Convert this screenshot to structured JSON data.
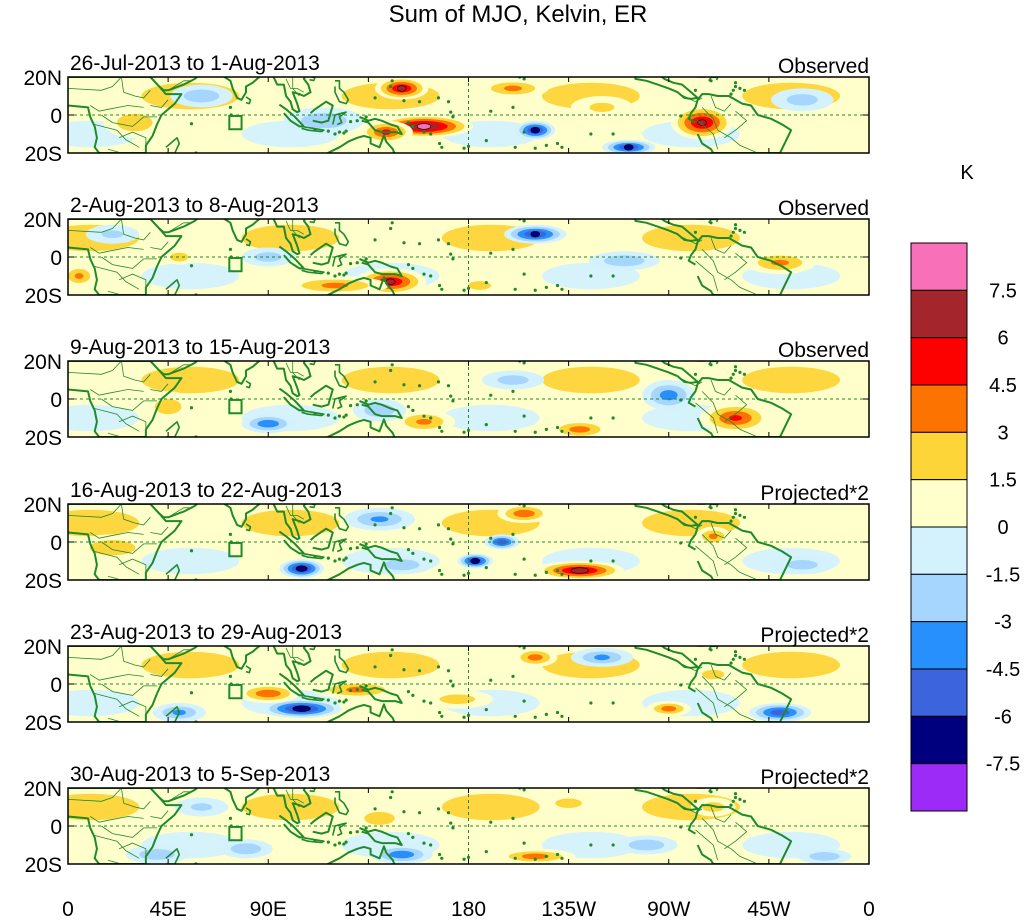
{
  "chart_data": {
    "type": "heatmap",
    "title": "Sum of MJO, Kelvin, ER",
    "colorbar": {
      "unit": "K",
      "levels": [
        "7.5",
        "6",
        "4.5",
        "3",
        "1.5",
        "0",
        "-1.5",
        "-3",
        "-4.5",
        "-6",
        "-7.5"
      ],
      "colors": [
        "#f871b8",
        "#a4262c",
        "#fd0000",
        "#fd7302",
        "#fed538",
        "#ffffcb",
        "#d4f2fe",
        "#a6d6fd",
        "#2890fc",
        "#3b64dd",
        "#00007f",
        "#9d2bf7"
      ]
    },
    "x_ticks": [
      "0",
      "45E",
      "90E",
      "135E",
      "180",
      "135W",
      "90W",
      "45W",
      "0"
    ],
    "y_ticks": [
      "20N",
      "0",
      "20S"
    ],
    "lat_range": [
      -20,
      20
    ],
    "lon_range": [
      0,
      360
    ],
    "map_color": "#1f8a2a",
    "panels": [
      {
        "period": "26-Jul-2013 to 1-Aug-2013",
        "type": "Observed",
        "blobs": [
          {
            "lon": 160,
            "lat": -6,
            "value": 8.2,
            "rx": 22,
            "ry": 6
          },
          {
            "lon": 143,
            "lat": -9,
            "value": 5.0,
            "rx": 12,
            "ry": 6
          },
          {
            "lon": 150,
            "lat": 14,
            "value": 6.5,
            "rx": 12,
            "ry": 6
          },
          {
            "lon": 285,
            "lat": -4,
            "value": 6.5,
            "rx": 14,
            "ry": 9
          },
          {
            "lon": 210,
            "lat": -8,
            "value": -7.0,
            "rx": 9,
            "ry": 5
          },
          {
            "lon": 252,
            "lat": -17,
            "value": -6.5,
            "rx": 12,
            "ry": 4
          },
          {
            "lon": 200,
            "lat": 14,
            "value": 3.5,
            "rx": 16,
            "ry": 5
          },
          {
            "lon": 30,
            "lat": -4,
            "value": 3.0,
            "rx": 14,
            "ry": 8
          },
          {
            "lon": 60,
            "lat": 10,
            "value": -3.0,
            "rx": 14,
            "ry": 6
          },
          {
            "lon": 115,
            "lat": -3,
            "value": -3.0,
            "rx": 18,
            "ry": 7
          },
          {
            "lon": 330,
            "lat": 8,
            "value": -2.5,
            "rx": 14,
            "ry": 6
          },
          {
            "lon": 240,
            "lat": 4,
            "value": 2.0,
            "rx": 14,
            "ry": 6
          }
        ]
      },
      {
        "period": "2-Aug-2013 to 8-Aug-2013",
        "type": "Observed",
        "blobs": [
          {
            "lon": 145,
            "lat": -13,
            "value": 6.2,
            "rx": 16,
            "ry": 7
          },
          {
            "lon": 120,
            "lat": -15,
            "value": 3.5,
            "rx": 24,
            "ry": 5
          },
          {
            "lon": 210,
            "lat": 12,
            "value": -6.5,
            "rx": 14,
            "ry": 5
          },
          {
            "lon": 320,
            "lat": -3,
            "value": 3.5,
            "rx": 16,
            "ry": 6
          },
          {
            "lon": 5,
            "lat": -10,
            "value": 3.5,
            "rx": 8,
            "ry": 6
          },
          {
            "lon": 50,
            "lat": 0,
            "value": 3.0,
            "rx": 7,
            "ry": 4
          },
          {
            "lon": 250,
            "lat": -2,
            "value": -3.0,
            "rx": 16,
            "ry": 5
          },
          {
            "lon": 185,
            "lat": -15,
            "value": 3.0,
            "rx": 9,
            "ry": 4
          },
          {
            "lon": 90,
            "lat": 0,
            "value": -2.5,
            "rx": 12,
            "ry": 5
          },
          {
            "lon": 20,
            "lat": 12,
            "value": -2.0,
            "rx": 12,
            "ry": 5
          }
        ]
      },
      {
        "period": "9-Aug-2013 to 15-Aug-2013",
        "type": "Observed",
        "blobs": [
          {
            "lon": 300,
            "lat": -10,
            "value": 5.0,
            "rx": 16,
            "ry": 8
          },
          {
            "lon": 160,
            "lat": -12,
            "value": 3.5,
            "rx": 14,
            "ry": 6
          },
          {
            "lon": 230,
            "lat": -16,
            "value": 4.0,
            "rx": 14,
            "ry": 5
          },
          {
            "lon": 90,
            "lat": -13,
            "value": -4.5,
            "rx": 12,
            "ry": 5
          },
          {
            "lon": 270,
            "lat": 2,
            "value": -4.0,
            "rx": 12,
            "ry": 8
          },
          {
            "lon": 140,
            "lat": -6,
            "value": -3.0,
            "rx": 12,
            "ry": 6
          },
          {
            "lon": 45,
            "lat": -4,
            "value": 2.5,
            "rx": 12,
            "ry": 8
          },
          {
            "lon": 200,
            "lat": 10,
            "value": -2.5,
            "rx": 14,
            "ry": 5
          }
        ]
      },
      {
        "period": "16-Aug-2013 to 22-Aug-2013",
        "type": "Projected*2",
        "blobs": [
          {
            "lon": 230,
            "lat": -15,
            "value": 7.0,
            "rx": 20,
            "ry": 5
          },
          {
            "lon": 105,
            "lat": -14,
            "value": -7.5,
            "rx": 10,
            "ry": 5
          },
          {
            "lon": 183,
            "lat": -10,
            "value": -7.0,
            "rx": 8,
            "ry": 4
          },
          {
            "lon": 205,
            "lat": 15,
            "value": 4.5,
            "rx": 12,
            "ry": 5
          },
          {
            "lon": 195,
            "lat": 0,
            "value": -6.0,
            "rx": 8,
            "ry": 4
          },
          {
            "lon": 290,
            "lat": 3,
            "value": 3.5,
            "rx": 8,
            "ry": 5
          },
          {
            "lon": 20,
            "lat": -3,
            "value": 3.0,
            "rx": 18,
            "ry": 7
          },
          {
            "lon": 140,
            "lat": 12,
            "value": -3.5,
            "rx": 16,
            "ry": 6
          },
          {
            "lon": 150,
            "lat": -12,
            "value": -3.0,
            "rx": 14,
            "ry": 5
          },
          {
            "lon": 330,
            "lat": -12,
            "value": -2.5,
            "rx": 14,
            "ry": 5
          }
        ]
      },
      {
        "period": "23-Aug-2013 to 29-Aug-2013",
        "type": "Projected*2",
        "blobs": [
          {
            "lon": 105,
            "lat": -13,
            "value": -7.2,
            "rx": 18,
            "ry": 5
          },
          {
            "lon": 90,
            "lat": -5,
            "value": 4.5,
            "rx": 14,
            "ry": 5
          },
          {
            "lon": 130,
            "lat": -3,
            "value": 3.5,
            "rx": 20,
            "ry": 5
          },
          {
            "lon": 320,
            "lat": -15,
            "value": -6.0,
            "rx": 14,
            "ry": 5
          },
          {
            "lon": 210,
            "lat": 14,
            "value": 4.0,
            "rx": 10,
            "ry": 5
          },
          {
            "lon": 270,
            "lat": -13,
            "value": 4.0,
            "rx": 10,
            "ry": 4
          },
          {
            "lon": 50,
            "lat": -15,
            "value": -3.5,
            "rx": 12,
            "ry": 5
          },
          {
            "lon": 240,
            "lat": 14,
            "value": -3.5,
            "rx": 14,
            "ry": 5
          },
          {
            "lon": 175,
            "lat": -8,
            "value": 2.5,
            "rx": 16,
            "ry": 5
          },
          {
            "lon": 290,
            "lat": 5,
            "value": 2.5,
            "rx": 10,
            "ry": 5
          }
        ]
      },
      {
        "period": "30-Aug-2013 to 5-Sep-2013",
        "type": "Projected*2",
        "blobs": [
          {
            "lon": 210,
            "lat": -16,
            "value": 4.0,
            "rx": 18,
            "ry": 4
          },
          {
            "lon": 150,
            "lat": -15,
            "value": -4.5,
            "rx": 14,
            "ry": 5
          },
          {
            "lon": 140,
            "lat": 4,
            "value": 3.0,
            "rx": 12,
            "ry": 6
          },
          {
            "lon": 225,
            "lat": 12,
            "value": 2.5,
            "rx": 12,
            "ry": 5
          },
          {
            "lon": 290,
            "lat": 10,
            "value": 2.5,
            "rx": 10,
            "ry": 5
          },
          {
            "lon": 40,
            "lat": -15,
            "value": -3.0,
            "rx": 14,
            "ry": 5
          },
          {
            "lon": 80,
            "lat": -12,
            "value": -3.0,
            "rx": 12,
            "ry": 5
          },
          {
            "lon": 260,
            "lat": -10,
            "value": -3.0,
            "rx": 14,
            "ry": 5
          },
          {
            "lon": 340,
            "lat": -16,
            "value": -3.0,
            "rx": 12,
            "ry": 4
          },
          {
            "lon": 60,
            "lat": 10,
            "value": -2.0,
            "rx": 12,
            "ry": 5
          }
        ]
      }
    ]
  }
}
